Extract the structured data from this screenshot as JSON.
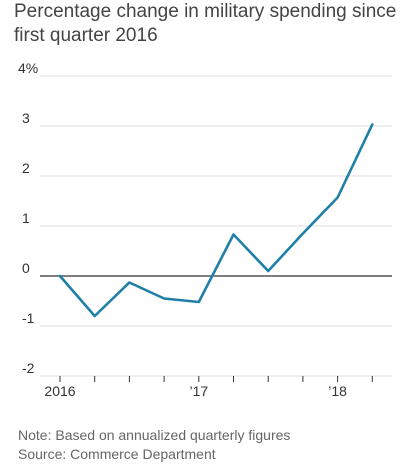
{
  "title": "Percentage change in military spending since first quarter 2016",
  "note": "Note: Based on annualized quarterly figures",
  "source": "Source: Commerce Department",
  "colors": {
    "line": "#1f7fa6",
    "grid": "#dddddd",
    "zero_line": "#333333",
    "tick": "#333333",
    "text": "#333333"
  },
  "chart_data": {
    "type": "line",
    "title": "Percentage change in military spending since first quarter 2016",
    "xlabel": "",
    "ylabel": "",
    "ylim": [
      -2,
      4
    ],
    "yticks": [
      -2,
      -1,
      0,
      1,
      2,
      3,
      4
    ],
    "ytick_labels": [
      "-2",
      "-1",
      "0",
      "1",
      "2",
      "3",
      "4%"
    ],
    "x_tick_labels": [
      {
        "quarter": "2016 Q1",
        "label": "2016"
      },
      {
        "quarter": "2017 Q1",
        "label": "’17"
      },
      {
        "quarter": "2018 Q1",
        "label": "’18"
      }
    ],
    "x_quarters": [
      "2016 Q1",
      "2016 Q2",
      "2016 Q3",
      "2016 Q4",
      "2017 Q1",
      "2017 Q2",
      "2017 Q3",
      "2017 Q4",
      "2018 Q1",
      "2018 Q2"
    ],
    "grid": true,
    "series": [
      {
        "x": [
          "2016 Q1",
          "2016 Q2",
          "2016 Q3",
          "2016 Q4",
          "2017 Q1",
          "2017 Q2",
          "2017 Q3",
          "2017 Q4",
          "2018 Q1",
          "2018 Q2"
        ],
        "values": [
          0.0,
          -0.8,
          -0.13,
          -0.45,
          -0.52,
          0.83,
          0.1,
          0.85,
          1.57,
          3.03
        ]
      }
    ]
  }
}
